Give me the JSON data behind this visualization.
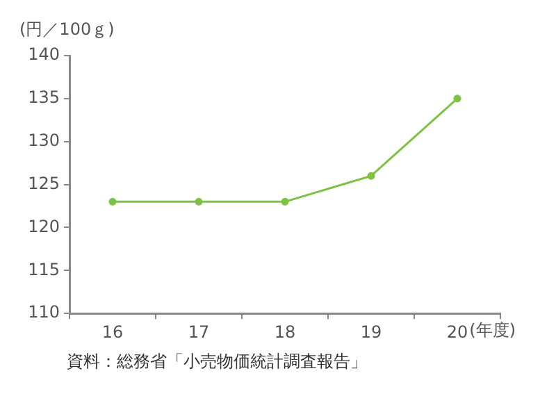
{
  "chart_data": {
    "type": "line",
    "ylabel": "(円／100ｇ)",
    "xlabel": "(年度)",
    "categories": [
      "16",
      "17",
      "18",
      "19",
      "20"
    ],
    "series": [
      {
        "color": "#7dc242",
        "values": [
          123,
          123,
          123,
          126,
          135
        ]
      }
    ],
    "ylim": [
      110,
      140
    ],
    "yticks": [
      110,
      115,
      120,
      125,
      130,
      135,
      140
    ],
    "grid": false,
    "legend": false,
    "marker": "circle",
    "line_style": "solid",
    "annotations": [
      "資料：総務省「小売物価統計調査報告」"
    ]
  }
}
